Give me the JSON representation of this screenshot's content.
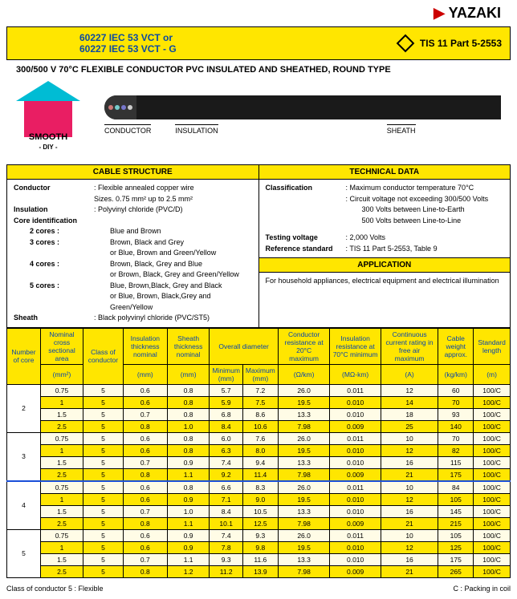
{
  "brand": "YAZAKI",
  "title_line1": "60227 IEC 53 VCT or",
  "title_line2": "60227 IEC 53 VCT - G",
  "tis": "TIS 11 Part 5-2553",
  "subtitle": "300/500 V 70°C FLEXIBLE CONDUCTOR PVC INSULATED AND SHEATHED, ROUND TYPE",
  "logo_text": "SMOOTH",
  "logo_sub": "- DIY -",
  "diag_labels": {
    "conductor": "CONDUCTOR",
    "insulation": "INSULATION",
    "sheath": "SHEATH"
  },
  "sections": {
    "structure_head": "CABLE STRUCTURE",
    "technical_head": "TECHNICAL DATA",
    "application_head": "APPLICATION"
  },
  "structure": {
    "conductor_lbl": "Conductor",
    "conductor_val": ": Flexible annealed copper wire",
    "sizes": "Sizes. 0.75 mm² up to 2.5 mm²",
    "insulation_lbl": "Insulation",
    "insulation_val": ": Polyvinyl chloride (PVC/D)",
    "coreident_lbl": "Core identification",
    "c2": "2 cores :",
    "c2v": "Blue and Brown",
    "c3": "3 cores :",
    "c3v": "Brown, Black and Grey",
    "c3v2": "or Blue, Brown and Green/Yellow",
    "c4": "4 cores :",
    "c4v": "Brown, Black, Grey and Blue",
    "c4v2": "or Brown, Black, Grey and Green/Yellow",
    "c5": "5 cores :",
    "c5v": "Blue, Brown,Black, Grey and Black",
    "c5v2": "or Blue, Brown, Black,Grey and Green/Yellow",
    "sheath_lbl": "Sheath",
    "sheath_val": ": Black polyvinyl chloride  (PVC/ST5)"
  },
  "technical": {
    "class_lbl": "Classification",
    "class_v1": ": Maximum conductor temperature 70°C",
    "class_v2": ": Circuit voltage not exceeding 300/500 Volts",
    "class_v3": "300 Volts between Line-to-Earth",
    "class_v4": "500 Volts between Line-to-Line",
    "test_lbl": "Testing voltage",
    "test_val": ": 2,000 Volts",
    "ref_lbl": "Reference standard",
    "ref_val": ": TIS 11 Part 5-2553, Table 9",
    "app_text": "For household appliances, electrical equipment and electrical illumination"
  },
  "table": {
    "headers": {
      "h1": "Number of core",
      "h2": "Nominal cross sectional area",
      "h3": "Class of conductor",
      "h4": "Insulation thickness nominal",
      "h5": "Sheath thickness nominal",
      "h6": "Overall diameter",
      "h6a": "Minimum",
      "h6b": "Maximum",
      "h7": "Conductor resistance at 20°C maximum",
      "h8": "Insulation resistance at 70°C minimum",
      "h9": "Continuous current rating in free air maximum",
      "h10": "Cable weight approx.",
      "h11": "Standard length",
      "u2": "(mm²)",
      "u4": "(mm)",
      "u5": "(mm)",
      "u6a": "(mm)",
      "u6b": "(mm)",
      "u7": "(Ω/km)",
      "u8": "(MΩ-km)",
      "u9": "(A)",
      "u10": "(kg/km)",
      "u11": "(m)"
    },
    "groups": [
      {
        "core": "2",
        "rows": [
          [
            "0.75",
            "5",
            "0.6",
            "0.8",
            "5.7",
            "7.2",
            "26.0",
            "0.011",
            "12",
            "60",
            "100/C"
          ],
          [
            "1",
            "5",
            "0.6",
            "0.8",
            "5.9",
            "7.5",
            "19.5",
            "0.010",
            "14",
            "70",
            "100/C"
          ],
          [
            "1.5",
            "5",
            "0.7",
            "0.8",
            "6.8",
            "8.6",
            "13.3",
            "0.010",
            "18",
            "93",
            "100/C"
          ],
          [
            "2.5",
            "5",
            "0.8",
            "1.0",
            "8.4",
            "10.6",
            "7.98",
            "0.009",
            "25",
            "140",
            "100/C"
          ]
        ]
      },
      {
        "core": "3",
        "rows": [
          [
            "0.75",
            "5",
            "0.6",
            "0.8",
            "6.0",
            "7.6",
            "26.0",
            "0.011",
            "10",
            "70",
            "100/C"
          ],
          [
            "1",
            "5",
            "0.6",
            "0.8",
            "6.3",
            "8.0",
            "19.5",
            "0.010",
            "12",
            "82",
            "100/C"
          ],
          [
            "1.5",
            "5",
            "0.7",
            "0.9",
            "7.4",
            "9.4",
            "13.3",
            "0.010",
            "16",
            "115",
            "100/C"
          ],
          [
            "2.5",
            "5",
            "0.8",
            "1.1",
            "9.2",
            "11.4",
            "7.98",
            "0.009",
            "21",
            "175",
            "100/C"
          ]
        ]
      },
      {
        "core": "4",
        "rows": [
          [
            "0.75",
            "5",
            "0.6",
            "0.8",
            "6.6",
            "8.3",
            "26.0",
            "0.011",
            "10",
            "84",
            "100/C"
          ],
          [
            "1",
            "5",
            "0.6",
            "0.9",
            "7.1",
            "9.0",
            "19.5",
            "0.010",
            "12",
            "105",
            "100/C"
          ],
          [
            "1.5",
            "5",
            "0.7",
            "1.0",
            "8.4",
            "10.5",
            "13.3",
            "0.010",
            "16",
            "145",
            "100/C"
          ],
          [
            "2.5",
            "5",
            "0.8",
            "1.1",
            "10.1",
            "12.5",
            "7.98",
            "0.009",
            "21",
            "215",
            "100/C"
          ]
        ]
      },
      {
        "core": "5",
        "rows": [
          [
            "0.75",
            "5",
            "0.6",
            "0.9",
            "7.4",
            "9.3",
            "26.0",
            "0.011",
            "10",
            "105",
            "100/C"
          ],
          [
            "1",
            "5",
            "0.6",
            "0.9",
            "7.8",
            "9.8",
            "19.5",
            "0.010",
            "12",
            "125",
            "100/C"
          ],
          [
            "1.5",
            "5",
            "0.7",
            "1.1",
            "9.3",
            "11.6",
            "13.3",
            "0.010",
            "16",
            "175",
            "100/C"
          ],
          [
            "2.5",
            "5",
            "0.8",
            "1.2",
            "11.2",
            "13.9",
            "7.98",
            "0.009",
            "21",
            "265",
            "100/C"
          ]
        ]
      }
    ]
  },
  "footer": {
    "left": "Class of conductor    5 : Flexible",
    "right": "C : Packing in coil"
  }
}
